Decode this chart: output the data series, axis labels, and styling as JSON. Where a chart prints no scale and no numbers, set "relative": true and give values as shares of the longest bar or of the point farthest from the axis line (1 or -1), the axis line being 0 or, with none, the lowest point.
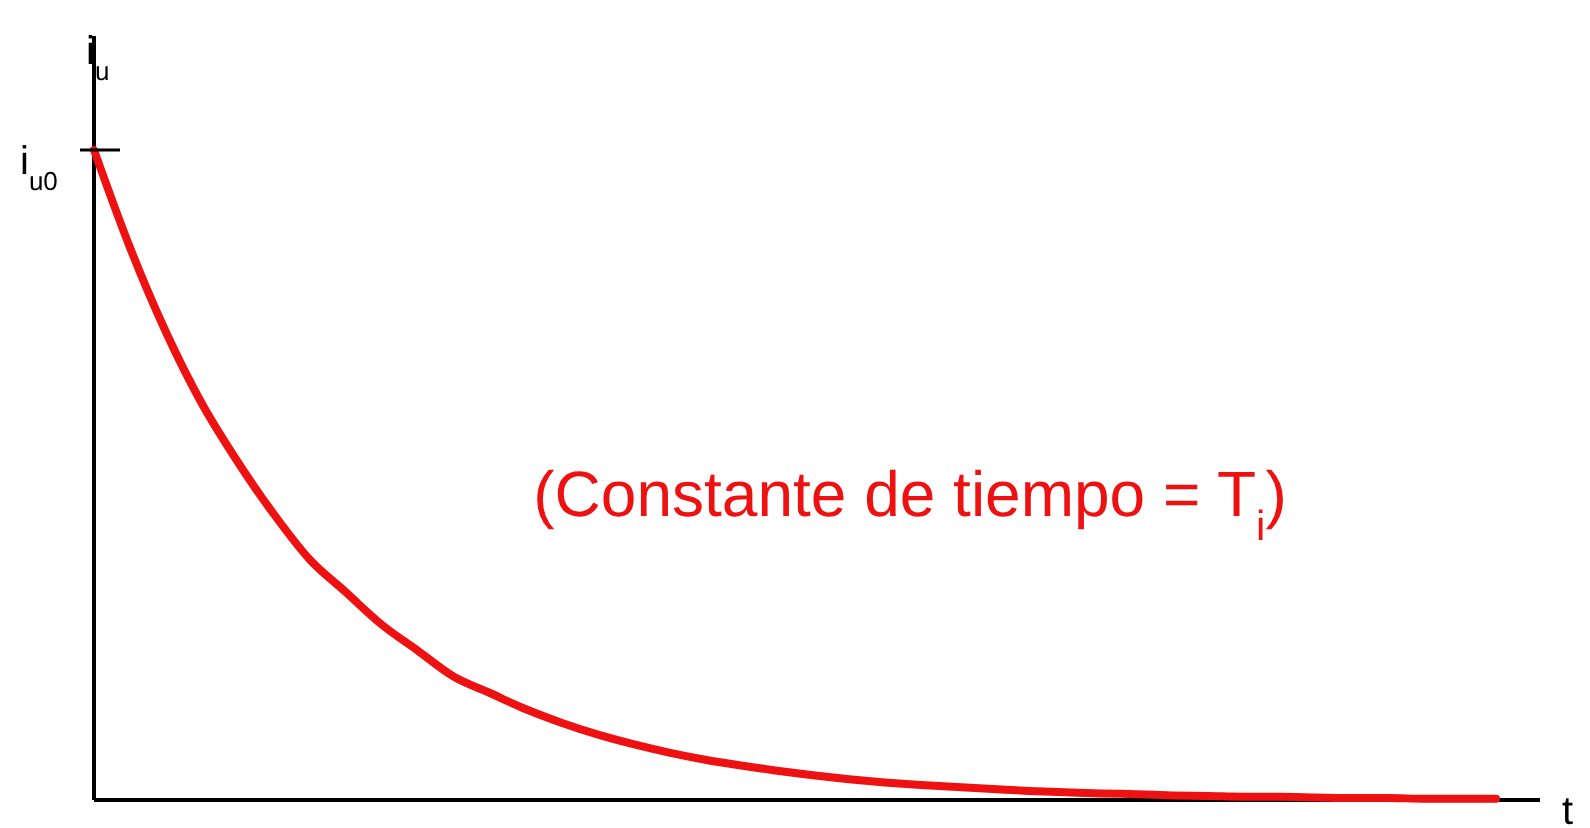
{
  "chart_data": {
    "type": "line",
    "relative": true,
    "xlabel": "t",
    "ylabel": "i$_{u}$",
    "categories": [
      null,
      null,
      null,
      null,
      null,
      null,
      null,
      null,
      null,
      null,
      null,
      null,
      null,
      null,
      null,
      null,
      null,
      null,
      null,
      null,
      null,
      null,
      null,
      null,
      null,
      null,
      null,
      null,
      null,
      null,
      null,
      null,
      null,
      null,
      null,
      null,
      null,
      null,
      null,
      null
    ],
    "series": [
      {
        "color": "#ee1111",
        "values": [
          1,
          0.85,
          0.72,
          0.61,
          0.52,
          0.44,
          0.37,
          0.32,
          0.27,
          0.23,
          0.19,
          0.165,
          0.14,
          0.119,
          0.101,
          0.086,
          0.073,
          0.062,
          0.053,
          0.045,
          0.038,
          0.032,
          0.027,
          0.023,
          0.02,
          0.017,
          0.014,
          0.012,
          0.01,
          0.009,
          0.007,
          0.006,
          0.005,
          0.005,
          0.004,
          0.003,
          0.003,
          0.002,
          0.002,
          0.002
        ]
      }
    ],
    "annotations": [
      "i$_{u0}$",
      "(Constante de tiempo = T$_{i}$)"
    ]
  }
}
